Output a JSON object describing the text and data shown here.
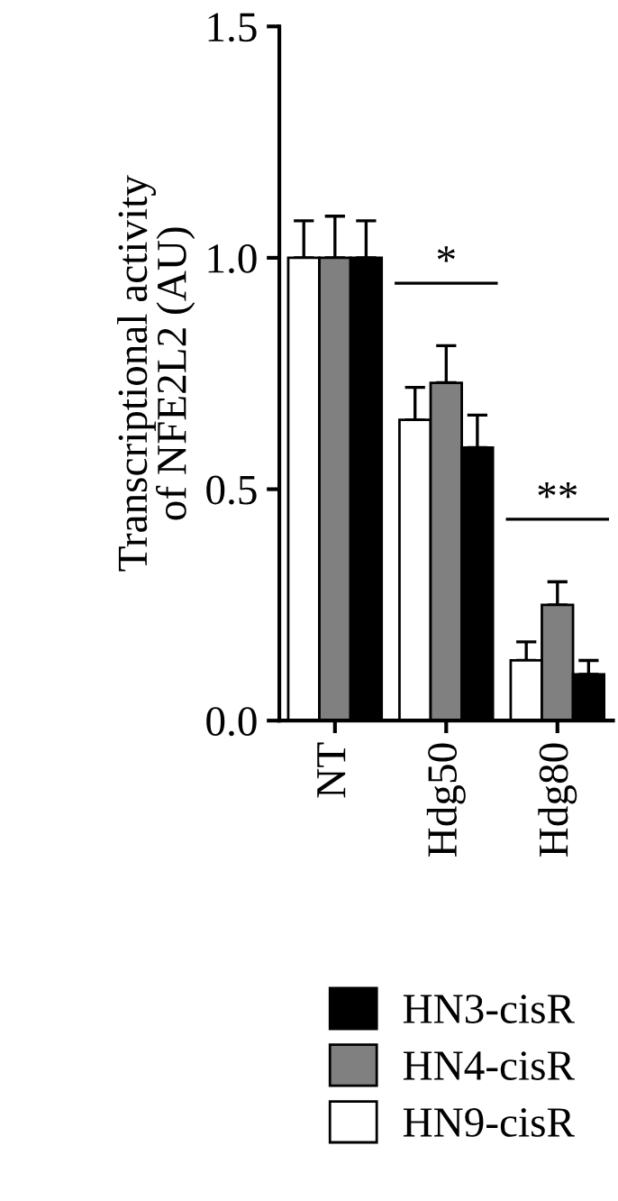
{
  "chart_data": {
    "type": "bar",
    "ylabel": "Transcriptional activity\nof NFE2L2 (AU)",
    "categories": [
      "NT",
      "Hdg50",
      "Hdg80"
    ],
    "series": [
      {
        "name": "HN9-cisR",
        "color": "#ffffff",
        "values": [
          1.0,
          0.65,
          0.13
        ],
        "errors": [
          0.08,
          0.07,
          0.04
        ]
      },
      {
        "name": "HN4-cisR",
        "color": "#808080",
        "values": [
          1.0,
          0.73,
          0.25
        ],
        "errors": [
          0.09,
          0.08,
          0.05
        ]
      },
      {
        "name": "HN3-cisR",
        "color": "#000000",
        "values": [
          1.0,
          0.59,
          0.1
        ],
        "errors": [
          0.08,
          0.07,
          0.03
        ]
      }
    ],
    "ylim": [
      0,
      1.5
    ],
    "yticks": [
      {
        "value": 0,
        "label": "0.0"
      },
      0.5,
      {
        "value": 1,
        "label": "1.0"
      },
      1.5
    ],
    "annotations": [
      "*",
      "**"
    ],
    "legend": "bottom",
    "grid": false
  }
}
